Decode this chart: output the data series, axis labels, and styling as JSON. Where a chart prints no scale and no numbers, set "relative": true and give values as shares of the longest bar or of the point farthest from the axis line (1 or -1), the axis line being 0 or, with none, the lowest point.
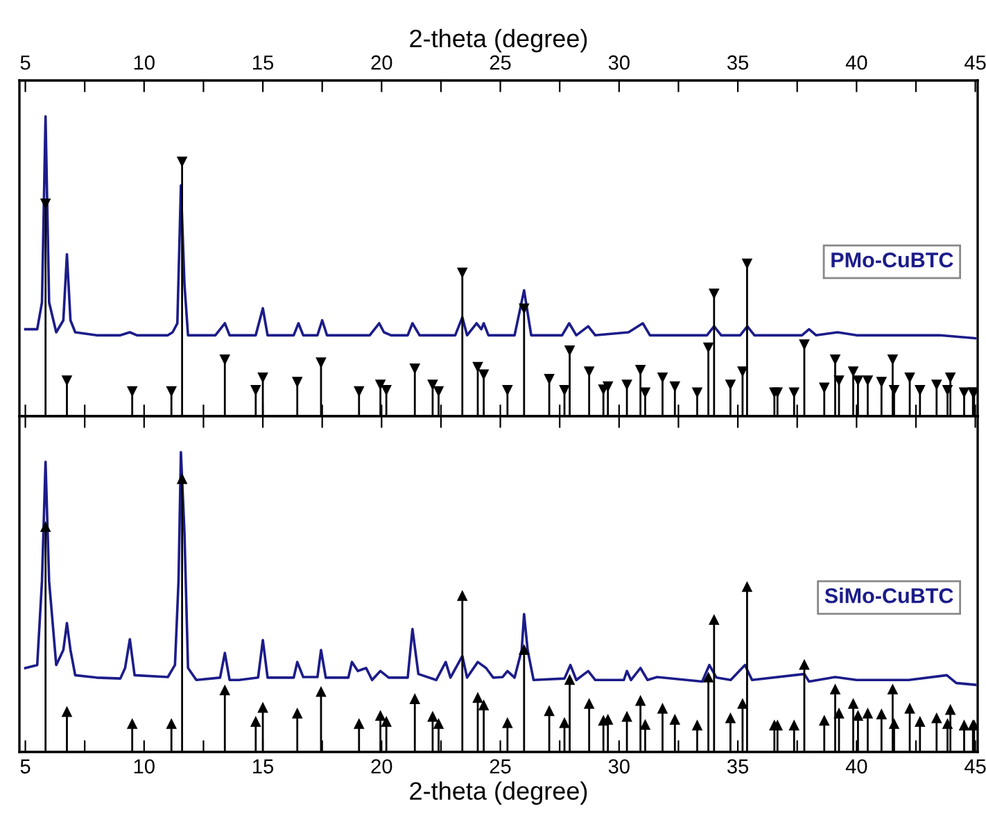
{
  "chart_data": [
    {
      "type": "line",
      "relative": true,
      "x2label": "2-theta (degree)",
      "x2lim": [
        4.75,
        45.1
      ],
      "xlim": [
        4.75,
        45.1
      ],
      "x2ticks": [
        5,
        {
          "value": 7.5,
          "label": null
        },
        10,
        {
          "value": 12.5,
          "label": null
        },
        15,
        {
          "value": 17.5,
          "label": null
        },
        20,
        {
          "value": 22.5,
          "label": null
        },
        25,
        {
          "value": 27.5,
          "label": null
        },
        30,
        {
          "value": 32.5,
          "label": null
        },
        35,
        {
          "value": 37.5,
          "label": null
        },
        40,
        {
          "value": 42.5,
          "label": null
        },
        45
      ],
      "legend": "right",
      "series": [
        {
          "name": "PMo-CuBTC",
          "color": "#1c1c8a",
          "x": [
            5.0,
            5.5,
            5.7,
            5.85,
            6.0,
            6.3,
            6.6,
            6.75,
            6.9,
            7.1,
            8,
            9,
            9.4,
            9.7,
            11,
            11.2,
            11.4,
            11.55,
            11.7,
            11.85,
            13,
            13.4,
            13.6,
            14.7,
            15.0,
            15.2,
            16.3,
            16.5,
            16.7,
            17.3,
            17.5,
            17.7,
            18.8,
            19.5,
            19.9,
            20.1,
            20.4,
            21.1,
            21.3,
            21.6,
            22.2,
            23.1,
            23.4,
            23.6,
            24.0,
            24.2,
            24.3,
            24.5,
            25.6,
            26.0,
            26.3,
            27.6,
            27.9,
            28.2,
            28.7,
            29.0,
            30.4,
            31.0,
            31.3,
            33.7,
            34.0,
            34.3,
            35.1,
            35.4,
            35.7,
            37.7,
            38.0,
            38.3,
            39.2,
            40.0,
            40.6,
            42.3,
            43.5,
            45
          ],
          "values": [
            0.29,
            0.29,
            0.38,
            1.0,
            0.38,
            0.28,
            0.32,
            0.54,
            0.32,
            0.28,
            0.27,
            0.27,
            0.28,
            0.27,
            0.27,
            0.28,
            0.31,
            0.77,
            0.44,
            0.27,
            0.27,
            0.31,
            0.27,
            0.27,
            0.36,
            0.27,
            0.27,
            0.31,
            0.27,
            0.27,
            0.32,
            0.27,
            0.27,
            0.27,
            0.31,
            0.28,
            0.27,
            0.27,
            0.31,
            0.27,
            0.27,
            0.27,
            0.33,
            0.27,
            0.31,
            0.29,
            0.31,
            0.27,
            0.27,
            0.42,
            0.27,
            0.27,
            0.31,
            0.27,
            0.3,
            0.27,
            0.28,
            0.31,
            0.27,
            0.27,
            0.3,
            0.27,
            0.27,
            0.3,
            0.27,
            0.27,
            0.29,
            0.27,
            0.28,
            0.27,
            0.27,
            0.27,
            0.27,
            0.26
          ]
        },
        {
          "type": "lollipop",
          "color": "#000000",
          "marker": "triangle",
          "x": [
            5.85,
            6.75,
            9.5,
            11.15,
            11.6,
            13.4,
            14.7,
            15.0,
            16.45,
            17.45,
            19.05,
            19.95,
            20.2,
            21.4,
            22.15,
            22.4,
            23.4,
            24.05,
            24.3,
            25.3,
            26.0,
            27.06,
            27.7,
            27.92,
            28.74,
            29.34,
            29.53,
            30.33,
            30.9,
            31.1,
            31.83,
            32.35,
            33.29,
            33.76,
            34.0,
            34.69,
            35.2,
            35.39,
            36.54,
            36.67,
            37.37,
            37.8,
            38.64,
            39.1,
            39.26,
            39.86,
            40.06,
            40.47,
            41.05,
            41.52,
            41.58,
            42.24,
            42.67,
            43.37,
            43.83,
            43.95,
            44.53,
            44.9,
            44.95
          ],
          "values": [
            0.71,
            0.12,
            0.084,
            0.084,
            0.85,
            0.19,
            0.088,
            0.13,
            0.115,
            0.18,
            0.084,
            0.106,
            0.088,
            0.16,
            0.106,
            0.084,
            0.48,
            0.165,
            0.14,
            0.088,
            0.36,
            0.125,
            0.088,
            0.22,
            0.15,
            0.09,
            0.1,
            0.106,
            0.155,
            0.08,
            0.13,
            0.1,
            0.08,
            0.23,
            0.41,
            0.106,
            0.15,
            0.51,
            0.08,
            0.08,
            0.08,
            0.24,
            0.096,
            0.19,
            0.12,
            0.15,
            0.12,
            0.12,
            0.115,
            0.19,
            0.088,
            0.13,
            0.088,
            0.106,
            0.088,
            0.13,
            0.08,
            0.08,
            0.08
          ]
        }
      ]
    },
    {
      "type": "line",
      "relative": true,
      "xlabel": "2-theta (degree)",
      "xlim": [
        4.75,
        45.1
      ],
      "xticks": [
        5,
        {
          "value": 7.5,
          "label": null
        },
        10,
        {
          "value": 12.5,
          "label": null
        },
        15,
        {
          "value": 17.5,
          "label": null
        },
        20,
        {
          "value": 22.5,
          "label": null
        },
        25,
        {
          "value": 27.5,
          "label": null
        },
        30,
        {
          "value": 32.5,
          "label": null
        },
        35,
        {
          "value": 37.5,
          "label": null
        },
        40,
        {
          "value": 42.5,
          "label": null
        },
        45
      ],
      "legend": "right",
      "series": [
        {
          "name": "SiMo-CuBTC",
          "color": "#1c1c8a",
          "x": [
            5.0,
            5.5,
            5.7,
            5.85,
            6.0,
            6.3,
            6.6,
            6.75,
            6.9,
            7.1,
            8,
            9,
            9.2,
            9.4,
            9.6,
            11,
            11.3,
            11.45,
            11.55,
            11.7,
            11.85,
            12.2,
            13.2,
            13.4,
            13.6,
            14,
            14.8,
            15.0,
            15.2,
            16.3,
            16.45,
            16.7,
            17.3,
            17.45,
            17.65,
            18.6,
            18.75,
            19.0,
            19.35,
            19.6,
            19.95,
            20.3,
            21.1,
            21.3,
            21.55,
            22.3,
            22.7,
            22.9,
            23.4,
            23.6,
            24.05,
            24.4,
            24.7,
            25.1,
            25.3,
            25.6,
            25.9,
            26.0,
            26.15,
            26.4,
            27.7,
            27.95,
            28.2,
            28.7,
            29.0,
            30.2,
            30.33,
            30.5,
            30.9,
            31.2,
            31.6,
            33.5,
            33.8,
            34.1,
            34.7,
            35.3,
            35.6,
            37.8,
            38.0,
            39.1,
            40,
            42.2,
            43.8,
            44.2,
            45
          ],
          "values": [
            0.28,
            0.29,
            0.57,
            0.968,
            0.57,
            0.29,
            0.34,
            0.43,
            0.34,
            0.256,
            0.248,
            0.245,
            0.28,
            0.376,
            0.256,
            0.25,
            0.29,
            0.57,
            1.0,
            0.73,
            0.28,
            0.24,
            0.248,
            0.33,
            0.24,
            0.24,
            0.248,
            0.373,
            0.248,
            0.248,
            0.3,
            0.25,
            0.25,
            0.34,
            0.248,
            0.248,
            0.3,
            0.27,
            0.28,
            0.24,
            0.27,
            0.248,
            0.248,
            0.41,
            0.26,
            0.24,
            0.3,
            0.248,
            0.32,
            0.248,
            0.3,
            0.28,
            0.248,
            0.25,
            0.27,
            0.248,
            0.34,
            0.46,
            0.34,
            0.24,
            0.245,
            0.29,
            0.24,
            0.27,
            0.24,
            0.24,
            0.27,
            0.24,
            0.28,
            0.24,
            0.25,
            0.235,
            0.29,
            0.248,
            0.24,
            0.29,
            0.24,
            0.26,
            0.235,
            0.25,
            0.24,
            0.24,
            0.256,
            0.23,
            0.224
          ]
        },
        {
          "type": "lollipop",
          "color": "#000000",
          "marker": "triangle",
          "x": [
            5.85,
            6.75,
            9.5,
            11.15,
            11.6,
            13.4,
            14.7,
            15.0,
            16.45,
            17.45,
            19.05,
            19.95,
            20.2,
            21.4,
            22.15,
            22.4,
            23.4,
            24.05,
            24.3,
            25.3,
            26.0,
            27.06,
            27.7,
            27.92,
            28.74,
            29.34,
            29.53,
            30.33,
            30.9,
            31.1,
            31.83,
            32.35,
            33.29,
            33.76,
            34.0,
            34.69,
            35.2,
            35.39,
            36.54,
            36.67,
            37.37,
            37.8,
            38.64,
            39.1,
            39.26,
            39.86,
            40.06,
            40.47,
            41.05,
            41.52,
            41.58,
            42.24,
            42.67,
            43.37,
            43.83,
            43.95,
            44.53,
            44.9,
            44.95
          ],
          "values": [
            0.75,
            0.133,
            0.093,
            0.093,
            0.91,
            0.205,
            0.1,
            0.147,
            0.128,
            0.2,
            0.093,
            0.12,
            0.1,
            0.176,
            0.117,
            0.093,
            0.52,
            0.18,
            0.155,
            0.096,
            0.34,
            0.136,
            0.096,
            0.24,
            0.16,
            0.104,
            0.107,
            0.117,
            0.17,
            0.09,
            0.144,
            0.107,
            0.088,
            0.248,
            0.44,
            0.112,
            0.16,
            0.55,
            0.088,
            0.088,
            0.088,
            0.29,
            0.104,
            0.208,
            0.128,
            0.16,
            0.12,
            0.128,
            0.125,
            0.208,
            0.093,
            0.144,
            0.1,
            0.112,
            0.093,
            0.14,
            0.088,
            0.088,
            0.088
          ]
        }
      ]
    }
  ]
}
